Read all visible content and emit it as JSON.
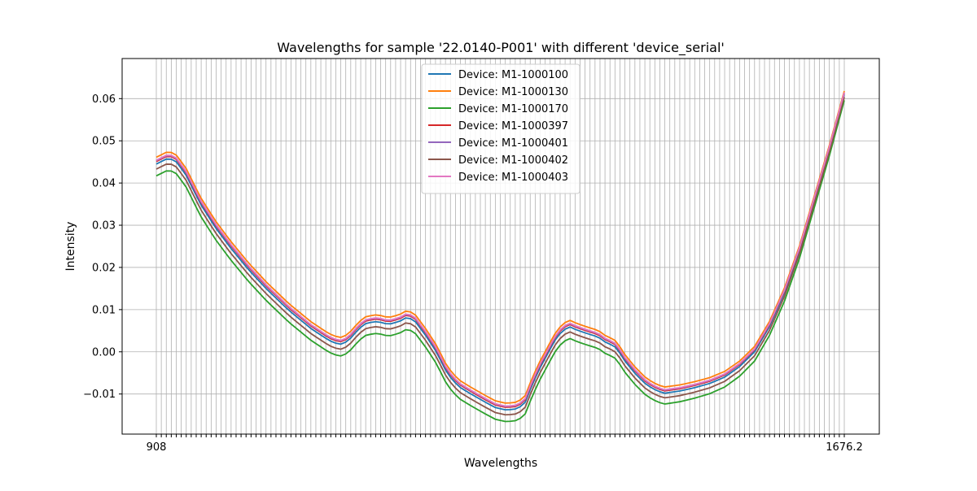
{
  "chart_data": {
    "type": "line",
    "title": "Wavelengths for sample '22.0140-P001' with different 'device_serial'",
    "xlabel": "Wavelengths",
    "ylabel": "Intensity",
    "grid": true,
    "legend_position": "top-center",
    "ylim": [
      -0.0195,
      0.0695
    ],
    "yticks": [
      "−0.01",
      "0.00",
      "0.01",
      "0.02",
      "0.03",
      "0.04",
      "0.05",
      "0.06"
    ],
    "ytick_values": [
      -0.01,
      0.0,
      0.01,
      0.02,
      0.03,
      0.04,
      0.05,
      0.06
    ],
    "num_x_points": 139,
    "first_x_label": "908",
    "last_x_label": "1676.2",
    "series": [
      {
        "name": "Device: M1-1000100",
        "color": "#1f77b4",
        "offset": 0.0
      },
      {
        "name": "Device: M1-1000130",
        "color": "#ff7f0e",
        "offset": 0.0016
      },
      {
        "name": "Device: M1-1000170",
        "color": "#2ca02c",
        "offset": -0.0028
      },
      {
        "name": "Device: M1-1000397",
        "color": "#d62728",
        "offset": 0.0006
      },
      {
        "name": "Device: M1-1000401",
        "color": "#9467bd",
        "offset": 0.0008
      },
      {
        "name": "Device: M1-1000402",
        "color": "#8c564b",
        "offset": -0.0012
      },
      {
        "name": "Device: M1-1000403",
        "color": "#e377c2",
        "offset": 0.0009
      }
    ],
    "baseline_curve": [
      [
        0,
        0.0445
      ],
      [
        3,
        0.0458
      ],
      [
        5,
        0.0455
      ],
      [
        8,
        0.042
      ],
      [
        12,
        0.035
      ],
      [
        16,
        0.0295
      ],
      [
        20,
        0.0248
      ],
      [
        25,
        0.0195
      ],
      [
        30,
        0.0148
      ],
      [
        36,
        0.0098
      ],
      [
        42,
        0.0055
      ],
      [
        46,
        0.0032
      ],
      [
        48,
        0.0022
      ],
      [
        50,
        0.0018
      ],
      [
        52,
        0.0025
      ],
      [
        55,
        0.0055
      ],
      [
        57,
        0.0068
      ],
      [
        60,
        0.0072
      ],
      [
        63,
        0.0065
      ],
      [
        66,
        0.0072
      ],
      [
        68,
        0.0082
      ],
      [
        70,
        0.0075
      ],
      [
        73,
        0.004
      ],
      [
        76,
        0.0
      ],
      [
        79,
        -0.0052
      ],
      [
        82,
        -0.0082
      ],
      [
        85,
        -0.0098
      ],
      [
        89,
        -0.0118
      ],
      [
        92,
        -0.0132
      ],
      [
        95,
        -0.0138
      ],
      [
        98,
        -0.0135
      ],
      [
        100,
        -0.0122
      ],
      [
        102,
        -0.0078
      ],
      [
        104,
        -0.004
      ],
      [
        106,
        -0.0008
      ],
      [
        108,
        0.0025
      ],
      [
        110,
        0.0048
      ],
      [
        112,
        0.006
      ],
      [
        114,
        0.0052
      ],
      [
        117,
        0.0043
      ],
      [
        120,
        0.0035
      ],
      [
        122,
        0.0022
      ],
      [
        124,
        0.0015
      ],
      [
        125,
        0.0008
      ],
      [
        127,
        -0.002
      ],
      [
        130,
        -0.0052
      ],
      [
        133,
        -0.0078
      ],
      [
        136,
        -0.0093
      ],
      [
        138,
        -0.0098
      ]
    ],
    "tail_curve": [
      [
        0,
        -0.0098
      ],
      [
        3,
        -0.0093
      ],
      [
        6,
        -0.0085
      ],
      [
        9,
        -0.0075
      ],
      [
        12,
        -0.006
      ],
      [
        15,
        -0.0035
      ],
      [
        18,
        0.0
      ],
      [
        21,
        0.006
      ],
      [
        24,
        0.014
      ],
      [
        27,
        0.024
      ],
      [
        30,
        0.036
      ],
      [
        33,
        0.048
      ],
      [
        36,
        0.061
      ]
    ]
  }
}
